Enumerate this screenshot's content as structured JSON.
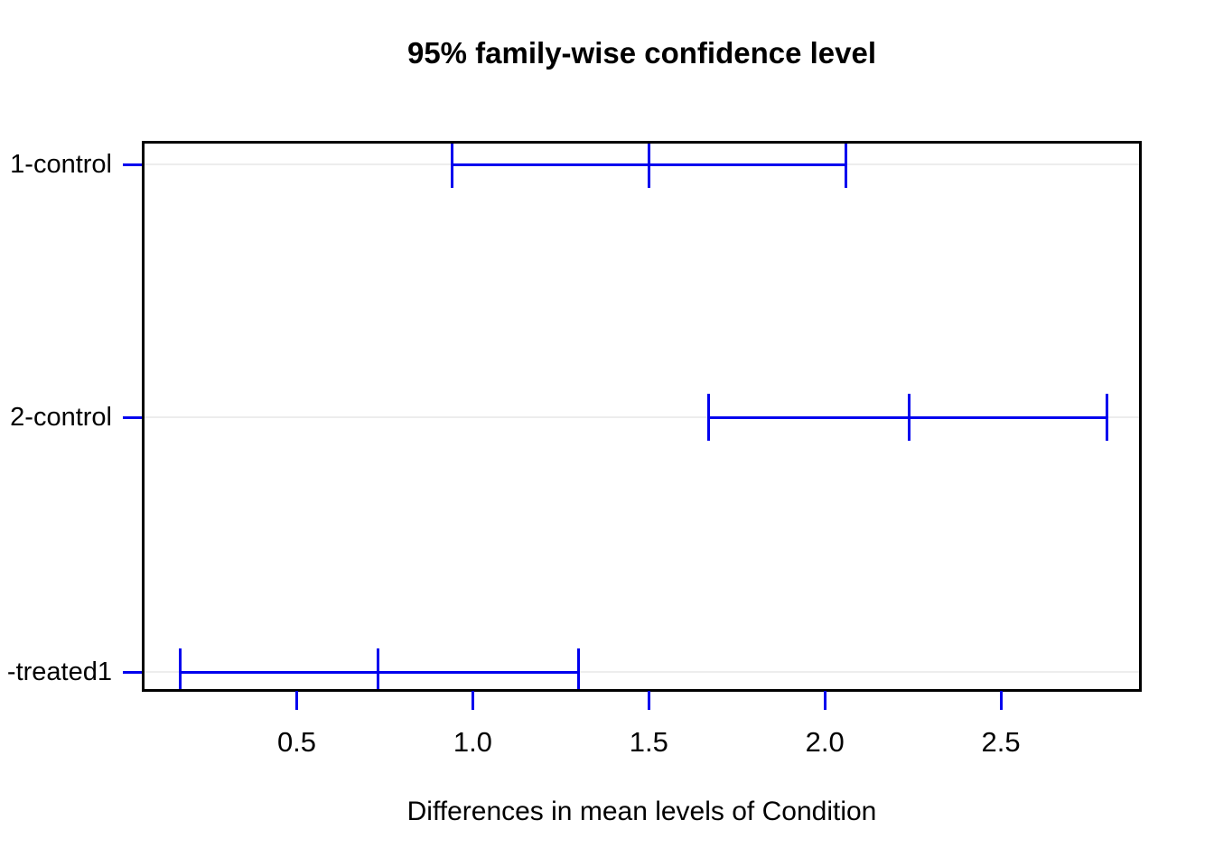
{
  "title": "95% family-wise confidence level",
  "xlabel": "Differences in mean levels of Condition",
  "chart_data": {
    "type": "errorbar",
    "subtype": "horizontal-confidence-intervals (R TukeyHSD plot)",
    "title": "95% family-wise confidence level",
    "xlabel": "Differences in mean levels of Condition",
    "ylabel": "",
    "xlim": [
      0.06,
      2.9
    ],
    "grid": "light horizontal reference line at each comparison row",
    "legend": "none",
    "x_ticks": [
      0.5,
      1.0,
      1.5,
      2.0,
      2.5
    ],
    "x_tick_labels": [
      "0.5",
      "1.0",
      "1.5",
      "2.0",
      "2.5"
    ],
    "rows": [
      {
        "label": "1-control",
        "lower": 0.94,
        "center": 1.5,
        "upper": 2.06
      },
      {
        "label": "2-control",
        "lower": 1.67,
        "center": 2.24,
        "upper": 2.8
      },
      {
        "label": "-treated1",
        "lower": 0.17,
        "center": 0.73,
        "upper": 1.3
      }
    ],
    "colors": {
      "interval": "#0000ee",
      "axis_tick": "#0000ee",
      "box": "#000000",
      "refline": "#ededed",
      "text": "#000000",
      "background": "#ffffff"
    }
  }
}
